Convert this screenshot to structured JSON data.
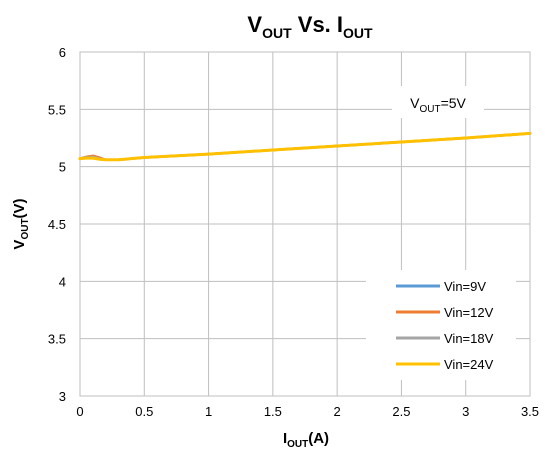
{
  "chart_data": {
    "type": "line",
    "title": {
      "main": "V",
      "main_sub": "OUT",
      "mid": " Vs. I",
      "mid_sub": "OUT"
    },
    "xlabel": {
      "main": "I",
      "sub": "OUT",
      "tail": "(A)"
    },
    "ylabel": {
      "main": "V",
      "sub": "OUT",
      "tail": "(V)"
    },
    "annotation": {
      "main": "V",
      "sub": "OUT",
      "tail": "=5V"
    },
    "xlim": [
      0,
      3.5
    ],
    "ylim": [
      3,
      6
    ],
    "xticks": [
      "0",
      "0.5",
      "1",
      "1.5",
      "2",
      "2.5",
      "3",
      "3.5"
    ],
    "yticks": [
      "3",
      "3.5",
      "4",
      "4.5",
      "5",
      "5.5",
      "6"
    ],
    "grid": true,
    "legend_position": "bottom-right",
    "series": [
      {
        "name": "Vin=9V",
        "color": "#5b9bd5",
        "x": [
          0,
          0.05,
          0.1,
          0.15,
          0.2,
          0.3,
          0.5,
          1.0,
          1.5,
          2.0,
          2.5,
          3.0,
          3.5
        ],
        "y": [
          5.07,
          5.085,
          5.09,
          5.075,
          5.06,
          5.06,
          5.08,
          5.11,
          5.145,
          5.18,
          5.215,
          5.25,
          5.29
        ]
      },
      {
        "name": "Vin=12V",
        "color": "#ed7d31",
        "x": [
          0,
          0.05,
          0.1,
          0.15,
          0.2,
          0.3,
          0.5,
          1.0,
          1.5,
          2.0,
          2.5,
          3.0,
          3.5
        ],
        "y": [
          5.07,
          5.085,
          5.095,
          5.08,
          5.06,
          5.06,
          5.08,
          5.11,
          5.145,
          5.18,
          5.215,
          5.25,
          5.29
        ]
      },
      {
        "name": "Vin=18V",
        "color": "#a5a5a5",
        "x": [
          0,
          0.05,
          0.1,
          0.15,
          0.2,
          0.3,
          0.5,
          1.0,
          1.5,
          2.0,
          2.5,
          3.0,
          3.5
        ],
        "y": [
          5.07,
          5.08,
          5.085,
          5.07,
          5.06,
          5.06,
          5.08,
          5.11,
          5.145,
          5.18,
          5.215,
          5.25,
          5.29
        ]
      },
      {
        "name": "Vin=24V",
        "color": "#ffc000",
        "x": [
          0,
          0.05,
          0.1,
          0.15,
          0.2,
          0.3,
          0.5,
          1.0,
          1.5,
          2.0,
          2.5,
          3.0,
          3.5
        ],
        "y": [
          5.07,
          5.075,
          5.075,
          5.065,
          5.06,
          5.06,
          5.08,
          5.11,
          5.145,
          5.18,
          5.215,
          5.25,
          5.29
        ]
      }
    ]
  }
}
